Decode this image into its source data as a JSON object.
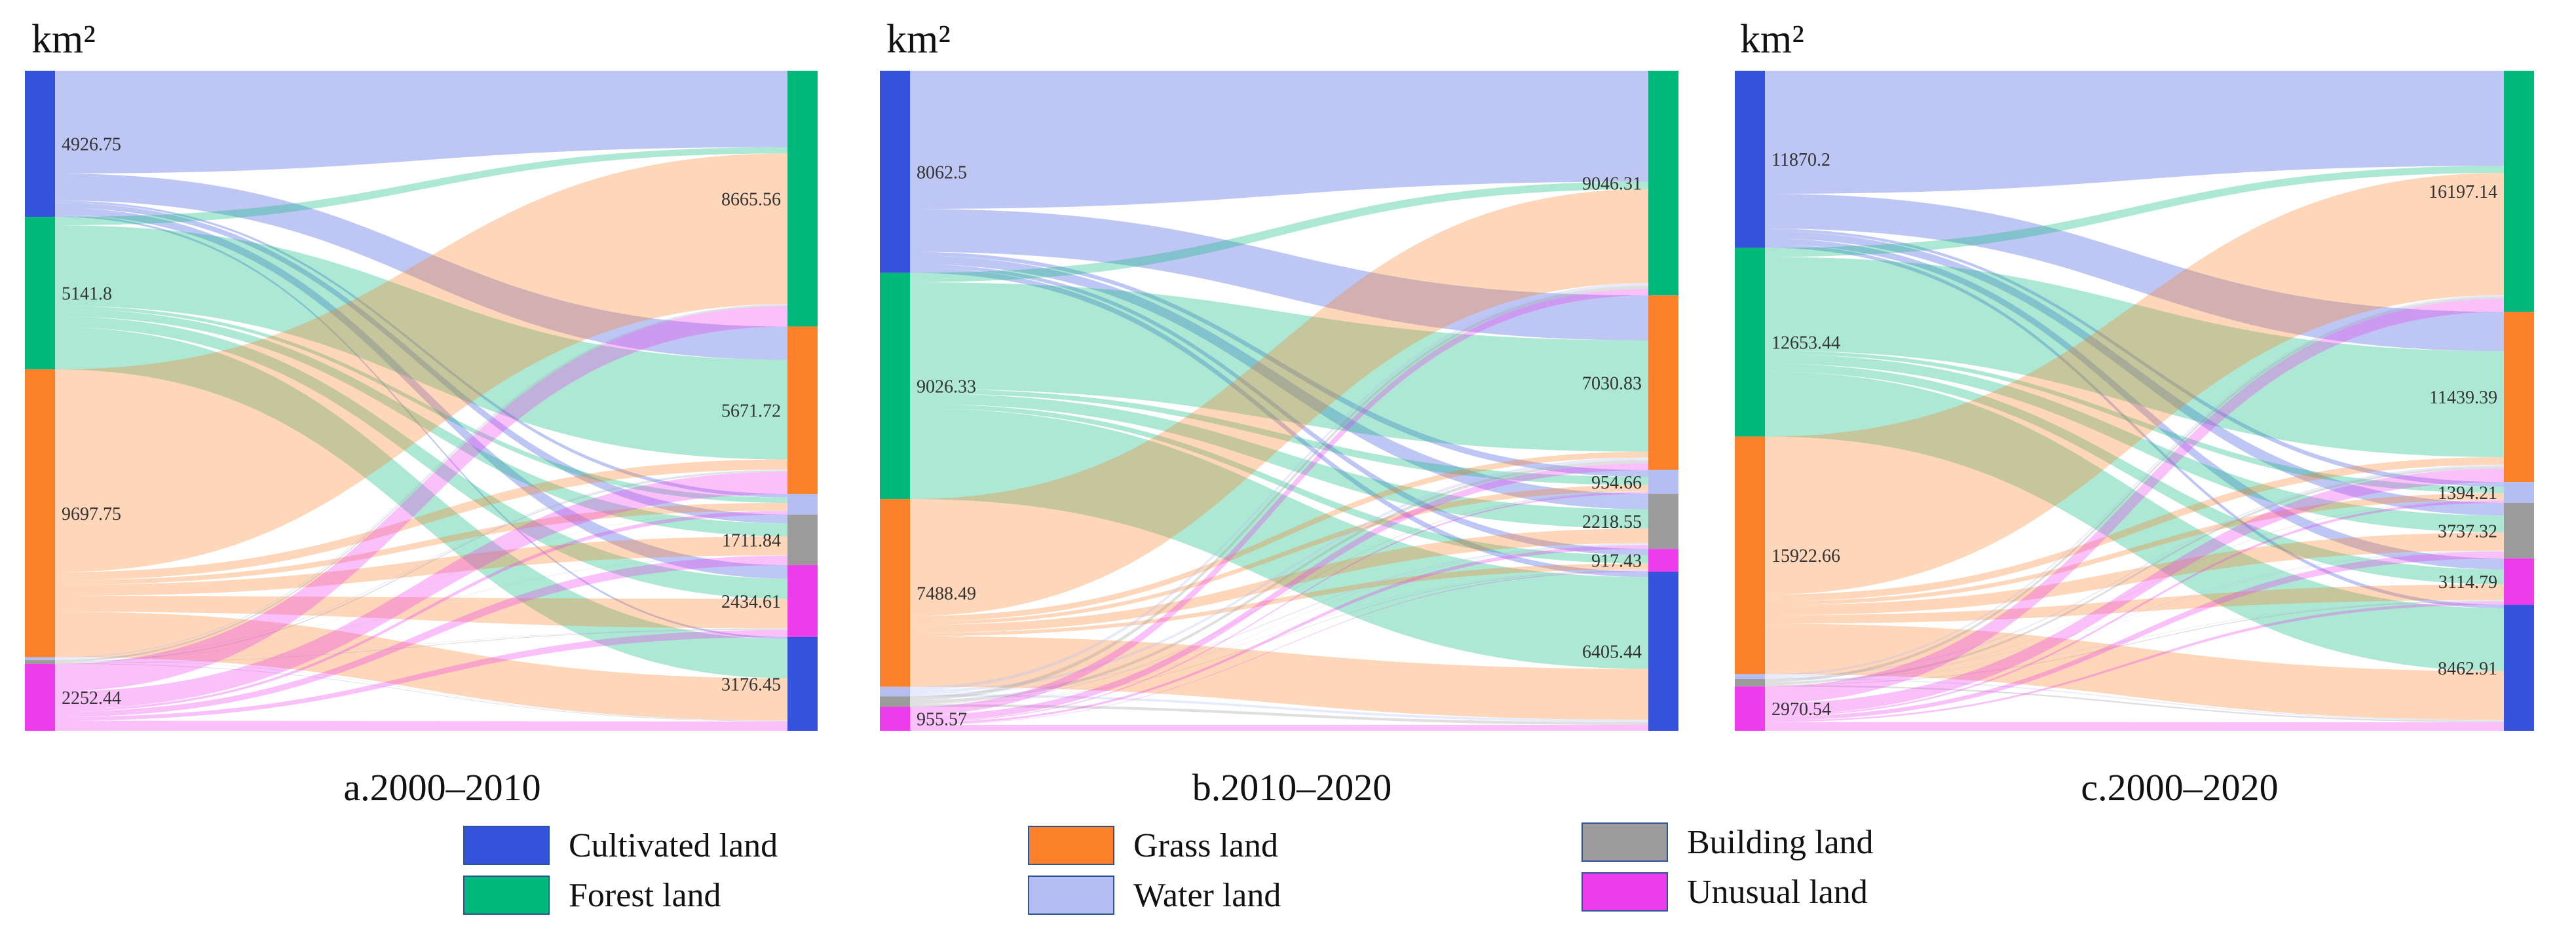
{
  "figure": {
    "unit_label": "km²",
    "colors": {
      "cultivated": "#3452DC",
      "forest": "#00B87A",
      "grass": "#FC7F29",
      "water": "#B4BEF2",
      "building": "#9B9B9B",
      "unusual": "#EC3CEC"
    },
    "legend": [
      {
        "key": "cultivated",
        "label": "Cultivated land"
      },
      {
        "key": "forest",
        "label": "Forest land"
      },
      {
        "key": "grass",
        "label": "Grass land"
      },
      {
        "key": "water",
        "label": "Water land"
      },
      {
        "key": "building",
        "label": "Building  land"
      },
      {
        "key": "unusual",
        "label": "Unusual land"
      }
    ]
  },
  "chart_data": [
    {
      "type": "sankey",
      "title": "a.2000–2010",
      "unit": "km²",
      "source_nodes": [
        {
          "key": "cultivated",
          "value": 4926.75,
          "label": "4926.75"
        },
        {
          "key": "forest",
          "value": 5141.8,
          "label": "5141.8"
        },
        {
          "key": "grass",
          "value": 9697.75,
          "label": "9697.75"
        },
        {
          "key": "water",
          "value": 100,
          "label": ""
        },
        {
          "key": "building",
          "value": 130,
          "label": ""
        },
        {
          "key": "unusual",
          "value": 2252.44,
          "label": "2252.44"
        }
      ],
      "target_nodes": [
        {
          "key": "forest",
          "value": 8665.56,
          "label": "8665.56"
        },
        {
          "key": "grass",
          "value": 5671.72,
          "label": "5671.72"
        },
        {
          "key": "water",
          "value": 700,
          "label": ""
        },
        {
          "key": "building",
          "value": 1711.84,
          "label": "1711.84"
        },
        {
          "key": "unusual",
          "value": 2434.61,
          "label": "2434.61"
        },
        {
          "key": "cultivated",
          "value": 3176.45,
          "label": "3176.45"
        }
      ]
    },
    {
      "type": "sankey",
      "title": "b.2010–2020",
      "unit": "km²",
      "source_nodes": [
        {
          "key": "cultivated",
          "value": 8062.5,
          "label": "8062.5"
        },
        {
          "key": "forest",
          "value": 9026.33,
          "label": "9026.33"
        },
        {
          "key": "grass",
          "value": 7488.49,
          "label": "7488.49"
        },
        {
          "key": "water",
          "value": 380,
          "label": ""
        },
        {
          "key": "building",
          "value": 420,
          "label": ""
        },
        {
          "key": "unusual",
          "value": 955.57,
          "label": "955.57"
        }
      ],
      "target_nodes": [
        {
          "key": "forest",
          "value": 9046.31,
          "label": "9046.31"
        },
        {
          "key": "grass",
          "value": 7030.83,
          "label": "7030.83"
        },
        {
          "key": "water",
          "value": 954.66,
          "label": "954.66"
        },
        {
          "key": "building",
          "value": 2218.55,
          "label": "2218.55"
        },
        {
          "key": "unusual",
          "value": 917.43,
          "label": "917.43"
        },
        {
          "key": "cultivated",
          "value": 6405.44,
          "label": "6405.44"
        }
      ]
    },
    {
      "type": "sankey",
      "title": "c.2000–2020",
      "unit": "km²",
      "source_nodes": [
        {
          "key": "cultivated",
          "value": 11870.2,
          "label": "11870.2"
        },
        {
          "key": "forest",
          "value": 12653.44,
          "label": "12653.44"
        },
        {
          "key": "grass",
          "value": 15922.66,
          "label": "15922.66"
        },
        {
          "key": "water",
          "value": 330,
          "label": ""
        },
        {
          "key": "building",
          "value": 500,
          "label": ""
        },
        {
          "key": "unusual",
          "value": 2970.54,
          "label": "2970.54"
        }
      ],
      "target_nodes": [
        {
          "key": "forest",
          "value": 16197.14,
          "label": "16197.14"
        },
        {
          "key": "grass",
          "value": 11439.39,
          "label": "11439.39"
        },
        {
          "key": "water",
          "value": 1394.21,
          "label": "1394.21"
        },
        {
          "key": "building",
          "value": 3737.32,
          "label": "3737.32"
        },
        {
          "key": "unusual",
          "value": 3114.79,
          "label": "3114.79"
        },
        {
          "key": "cultivated",
          "value": 8462.91,
          "label": "8462.91"
        }
      ]
    }
  ]
}
